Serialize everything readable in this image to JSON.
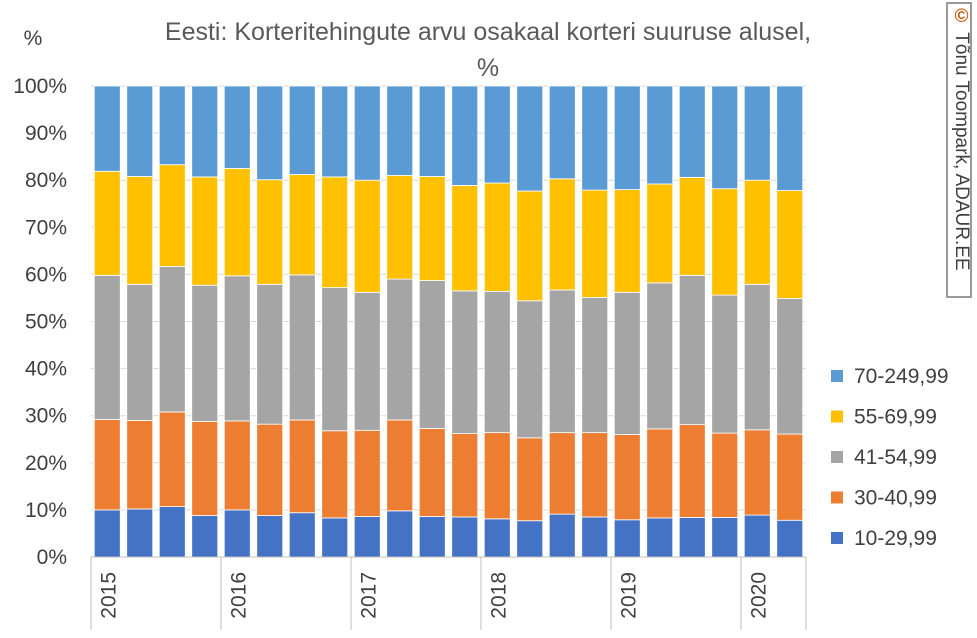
{
  "chart_data": {
    "type": "bar",
    "stacked": true,
    "title_line1": "Eesti: Korteritehingute arvu osakaal korteri suuruse alusel,",
    "title_line2": "%",
    "ylabel": "%",
    "ylim": [
      0,
      100
    ],
    "y_ticks": [
      "0%",
      "10%",
      "20%",
      "30%",
      "40%",
      "50%",
      "60%",
      "70%",
      "80%",
      "90%",
      "100%"
    ],
    "x_tick_labels": [
      "2015",
      "2016",
      "2017",
      "2018",
      "2019",
      "2020"
    ],
    "x_tick_label_bar_index": [
      0,
      4,
      8,
      12,
      16,
      20
    ],
    "legend_position": "right",
    "series": [
      {
        "name": "10-29,99",
        "color": "#4472c4",
        "values": [
          10,
          10.2,
          10.7,
          8.8,
          10,
          8.8,
          9.4,
          8.3,
          8.6,
          9.8,
          8.6,
          8.5,
          8.1,
          7.7,
          9.1,
          8.5,
          7.9,
          8.3,
          8.4,
          8.4,
          8.9,
          7.8
        ]
      },
      {
        "name": "30-40,99",
        "color": "#ed7d31",
        "values": [
          19.2,
          18.8,
          20.1,
          20,
          18.9,
          19.4,
          19.7,
          18.5,
          18.3,
          19.3,
          18.7,
          17.7,
          18.3,
          17.6,
          17.3,
          17.9,
          18.1,
          18.9,
          19.7,
          17.9,
          18.1,
          18.3
        ]
      },
      {
        "name": "41-54,99",
        "color": "#a5a5a5",
        "values": [
          30.6,
          28.9,
          30.9,
          28.9,
          30.8,
          29.7,
          30.8,
          30.4,
          29.3,
          29.9,
          31.4,
          30.3,
          30,
          29.1,
          30.3,
          28.7,
          30.2,
          31.0,
          31.7,
          29.3,
          30.9,
          28.8
        ]
      },
      {
        "name": "55-69,99",
        "color": "#ffc000",
        "values": [
          22.1,
          22.9,
          21.6,
          23,
          22.8,
          22.2,
          21.3,
          23.5,
          23.8,
          22,
          22.1,
          22.4,
          23,
          23.3,
          23.6,
          22.8,
          21.8,
          21.0,
          20.8,
          22.6,
          22.1,
          22.9
        ]
      },
      {
        "name": "70-249,99",
        "color": "#5b9bd5",
        "values": [
          18.1,
          19.2,
          16.7,
          19.3,
          17.5,
          19.9,
          18.8,
          19.3,
          20,
          19,
          19.2,
          21.1,
          20.6,
          22.3,
          19.7,
          22.1,
          22,
          20.8,
          19.4,
          21.8,
          20,
          22.2
        ]
      }
    ]
  },
  "copyright": {
    "mark": "©",
    "text": "Tõnu Toompark, ADAUR.EE"
  }
}
